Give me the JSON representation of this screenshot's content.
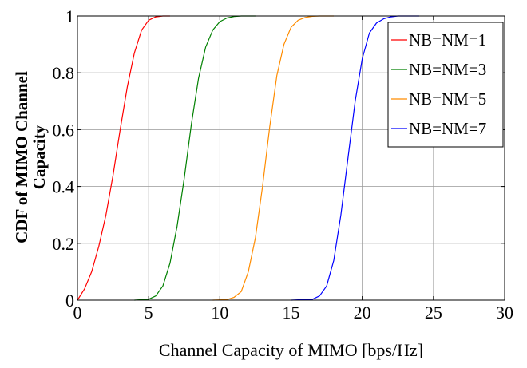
{
  "chart_data": {
    "type": "line",
    "title": "",
    "xlabel": "Channel Capacity of MIMO [bps/Hz]",
    "ylabel_lines": [
      "CDF of MIMO Channel",
      "Capacity"
    ],
    "xlim": [
      0,
      30
    ],
    "ylim": [
      0,
      1
    ],
    "xticks": [
      0,
      5,
      10,
      15,
      20,
      25,
      30
    ],
    "xtick_labels": [
      "0",
      "5",
      "10",
      "15",
      "20",
      "25",
      "30"
    ],
    "yticks": [
      0,
      0.2,
      0.4,
      0.6,
      0.8,
      1
    ],
    "ytick_labels": [
      "0",
      "0.2",
      "0.4",
      "0.6",
      "0.8",
      "1"
    ],
    "grid": true,
    "legend_position": "top-right",
    "series": [
      {
        "name": "NB=NM=1",
        "color": "#ff0000",
        "x": [
          0,
          0.5,
          1,
          1.5,
          2,
          2.5,
          3,
          3.5,
          4,
          4.5,
          5,
          5.5,
          6,
          6.5
        ],
        "y": [
          0,
          0.04,
          0.1,
          0.19,
          0.3,
          0.44,
          0.6,
          0.75,
          0.87,
          0.95,
          0.985,
          0.997,
          1,
          1
        ]
      },
      {
        "name": "NB=NM=3",
        "color": "#008000",
        "x": [
          4,
          5,
          5.5,
          6,
          6.5,
          7,
          7.5,
          8,
          8.5,
          9,
          9.5,
          10,
          10.5,
          11,
          11.5,
          12,
          12.5
        ],
        "y": [
          0,
          0.003,
          0.015,
          0.05,
          0.13,
          0.26,
          0.43,
          0.62,
          0.78,
          0.89,
          0.95,
          0.98,
          0.993,
          0.998,
          1,
          1,
          1
        ]
      },
      {
        "name": "NB=NM=5",
        "color": "#ff8c00",
        "x": [
          9.5,
          10.5,
          11,
          11.5,
          12,
          12.5,
          13,
          13.5,
          14,
          14.5,
          15,
          15.5,
          16,
          16.5,
          17,
          18
        ],
        "y": [
          0,
          0.002,
          0.01,
          0.03,
          0.1,
          0.22,
          0.4,
          0.61,
          0.79,
          0.9,
          0.96,
          0.985,
          0.995,
          0.999,
          1,
          1
        ]
      },
      {
        "name": "NB=NM=7",
        "color": "#0000ff",
        "x": [
          15,
          16.5,
          17,
          17.5,
          18,
          18.5,
          19,
          19.5,
          20,
          20.5,
          21,
          21.5,
          22,
          22.5,
          23,
          24
        ],
        "y": [
          0,
          0.003,
          0.015,
          0.05,
          0.14,
          0.3,
          0.5,
          0.7,
          0.85,
          0.94,
          0.975,
          0.99,
          0.997,
          1,
          1,
          1
        ]
      }
    ]
  }
}
